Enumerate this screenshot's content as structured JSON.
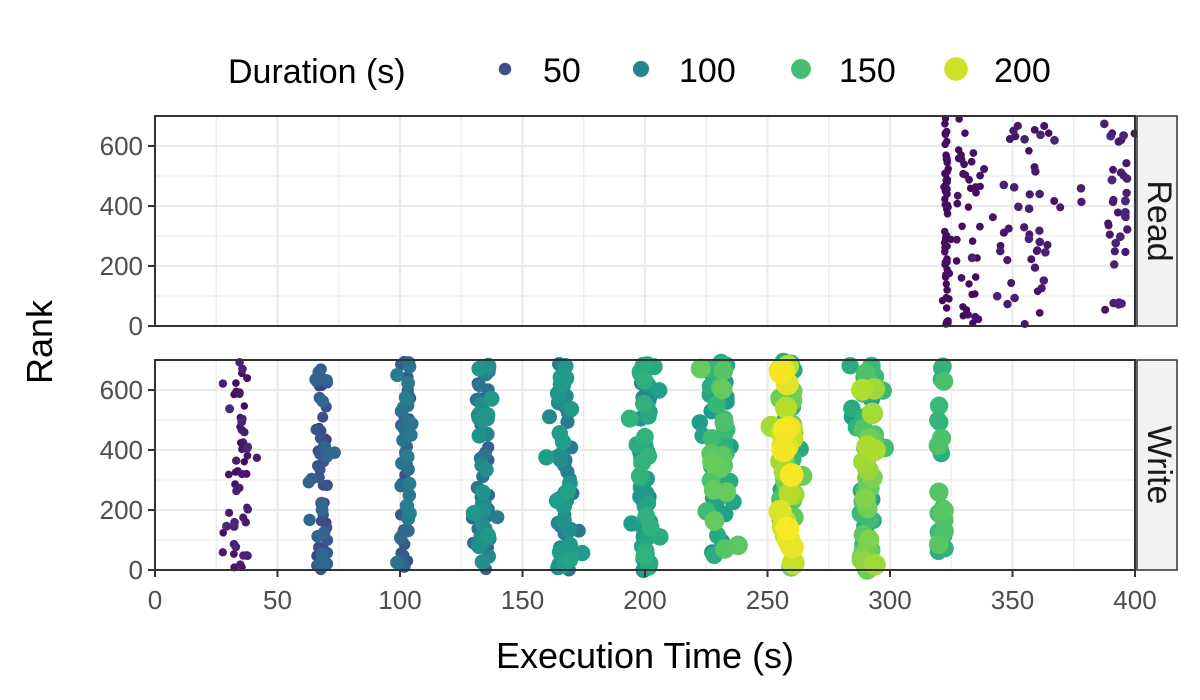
{
  "chart_data": {
    "type": "scatter",
    "title": "",
    "xlabel": "Execution Time (s)",
    "ylabel": "Rank",
    "xlim": [
      0,
      400
    ],
    "ylim": [
      0,
      700
    ],
    "x_ticks": [
      "0",
      "50",
      "100",
      "150",
      "200",
      "250",
      "300",
      "350",
      "400"
    ],
    "y_ticks": [
      "0",
      "200",
      "400",
      "600"
    ],
    "grid": true,
    "legend": {
      "title": "Duration (s)",
      "placement": "top",
      "entries": [
        {
          "label": "50",
          "value": 50,
          "color": "#3f4788"
        },
        {
          "label": "100",
          "value": 100,
          "color": "#2a788e"
        },
        {
          "label": "150",
          "value": 150,
          "color": "#22a884"
        },
        {
          "label": "200",
          "value": 200,
          "color": "#7ad151"
        }
      ]
    },
    "color_scale": {
      "name": "viridis",
      "domain": [
        0,
        215
      ],
      "stops": [
        "#440154",
        "#482878",
        "#3e4a89",
        "#31688e",
        "#26828e",
        "#1f9e89",
        "#35b779",
        "#6ece58",
        "#b5de2b",
        "#fde725"
      ]
    },
    "panels": [
      {
        "label": "Read",
        "clusters": [
          {
            "x": 323,
            "count": 60,
            "dur": [
              4,
              8
            ],
            "spread": 0.8
          },
          {
            "x": 332,
            "count": 40,
            "dur": [
              5,
              12
            ],
            "spread": 5
          },
          {
            "x": 355,
            "count": 50,
            "dur": [
              8,
              22
            ],
            "spread": 10
          },
          {
            "x": 393,
            "count": 35,
            "dur": [
              10,
              25
            ],
            "spread": 4
          }
        ]
      },
      {
        "label": "Write",
        "clusters": [
          {
            "x": 35,
            "count": 55,
            "dur": [
              5,
              25
            ],
            "spread": 3
          },
          {
            "x": 68,
            "count": 60,
            "dur": [
              40,
              75
            ],
            "spread": 2.5
          },
          {
            "x": 102,
            "count": 65,
            "dur": [
              50,
              95
            ],
            "spread": 2
          },
          {
            "x": 134,
            "count": 70,
            "dur": [
              65,
              115
            ],
            "spread": 2.5
          },
          {
            "x": 167,
            "count": 70,
            "dur": [
              80,
              125
            ],
            "spread": 3
          },
          {
            "x": 200,
            "count": 60,
            "dur": [
              95,
              140
            ],
            "spread": 2.5
          },
          {
            "x": 230,
            "count": 65,
            "dur": [
              110,
              165
            ],
            "spread": 3.5
          },
          {
            "x": 258,
            "count": 70,
            "dur": [
              120,
              215
            ],
            "spread": 3
          },
          {
            "x": 291,
            "count": 70,
            "dur": [
              120,
              190
            ],
            "spread": 3
          },
          {
            "x": 321,
            "count": 25,
            "dur": [
              130,
              160
            ],
            "spread": 1.5
          }
        ]
      }
    ]
  }
}
